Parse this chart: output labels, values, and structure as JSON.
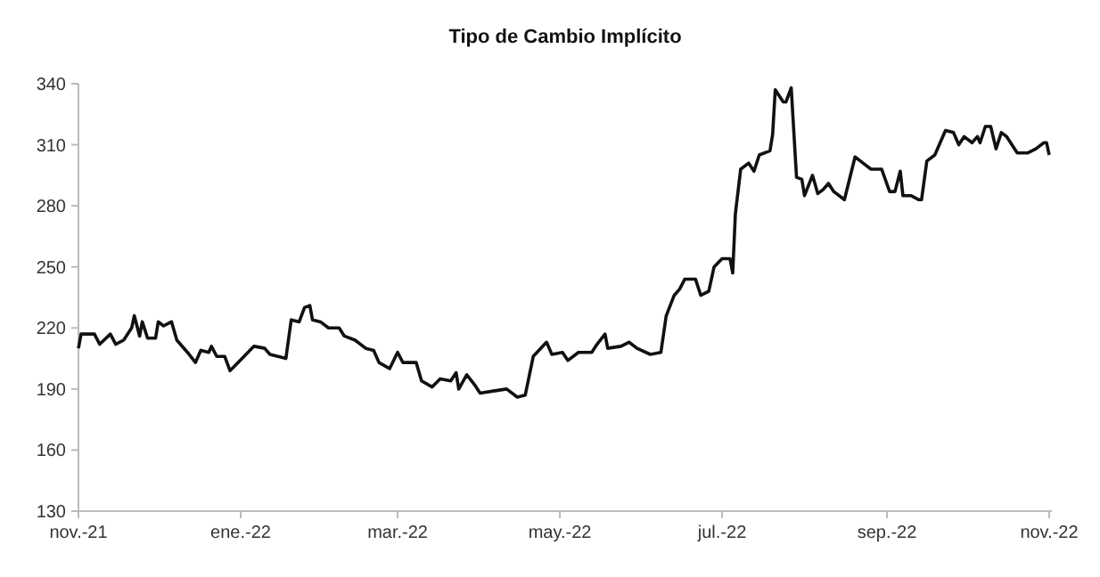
{
  "chart_data": {
    "type": "line",
    "title": "Tipo de Cambio Implícito",
    "x": [
      "2021-11-01",
      "2021-11-02",
      "2021-11-07",
      "2021-11-09",
      "2021-11-13",
      "2021-11-15",
      "2021-11-18",
      "2021-11-21",
      "2021-11-22",
      "2021-11-24",
      "2021-11-25",
      "2021-11-27",
      "2021-11-30",
      "2021-12-01",
      "2021-12-03",
      "2021-12-06",
      "2021-12-08",
      "2021-12-12",
      "2021-12-15",
      "2021-12-17",
      "2021-12-20",
      "2021-12-21",
      "2021-12-23",
      "2021-12-26",
      "2021-12-28",
      "2021-12-31",
      "2022-01-03",
      "2022-01-06",
      "2022-01-10",
      "2022-01-12",
      "2022-01-15",
      "2022-01-18",
      "2022-01-20",
      "2022-01-23",
      "2022-01-25",
      "2022-01-27",
      "2022-01-28",
      "2022-01-31",
      "2022-02-03",
      "2022-02-07",
      "2022-02-09",
      "2022-02-13",
      "2022-02-17",
      "2022-02-20",
      "2022-02-22",
      "2022-02-26",
      "2022-03-01",
      "2022-03-03",
      "2022-03-08",
      "2022-03-10",
      "2022-03-14",
      "2022-03-17",
      "2022-03-21",
      "2022-03-23",
      "2022-03-24",
      "2022-03-27",
      "2022-03-30",
      "2022-04-01",
      "2022-04-06",
      "2022-04-11",
      "2022-04-15",
      "2022-04-18",
      "2022-04-21",
      "2022-04-26",
      "2022-04-28",
      "2022-05-02",
      "2022-05-04",
      "2022-05-08",
      "2022-05-13",
      "2022-05-15",
      "2022-05-18",
      "2022-05-19",
      "2022-05-24",
      "2022-05-27",
      "2022-05-30",
      "2022-06-04",
      "2022-06-08",
      "2022-06-10",
      "2022-06-13",
      "2022-06-15",
      "2022-06-17",
      "2022-06-21",
      "2022-06-23",
      "2022-06-26",
      "2022-06-28",
      "2022-07-01",
      "2022-07-04",
      "2022-07-05",
      "2022-07-06",
      "2022-07-08",
      "2022-07-11",
      "2022-07-13",
      "2022-07-15",
      "2022-07-19",
      "2022-07-20",
      "2022-07-21",
      "2022-07-24",
      "2022-07-25",
      "2022-07-27",
      "2022-07-29",
      "2022-07-31",
      "2022-08-01",
      "2022-08-04",
      "2022-08-06",
      "2022-08-08",
      "2022-08-10",
      "2022-08-12",
      "2022-08-16",
      "2022-08-20",
      "2022-08-23",
      "2022-08-26",
      "2022-08-30",
      "2022-09-02",
      "2022-09-04",
      "2022-09-06",
      "2022-09-07",
      "2022-09-10",
      "2022-09-13",
      "2022-09-14",
      "2022-09-16",
      "2022-09-19",
      "2022-09-23",
      "2022-09-26",
      "2022-09-28",
      "2022-09-30",
      "2022-10-03",
      "2022-10-05",
      "2022-10-06",
      "2022-10-08",
      "2022-10-10",
      "2022-10-12",
      "2022-10-14",
      "2022-10-16",
      "2022-10-20",
      "2022-10-24",
      "2022-10-27",
      "2022-10-30",
      "2022-10-31",
      "2022-11-01"
    ],
    "series": [
      {
        "color": "#111111",
        "values": [
          210,
          217,
          217,
          212,
          217,
          212,
          214,
          220,
          226,
          216,
          223,
          215,
          215,
          223,
          221,
          223,
          214,
          208,
          203,
          209,
          208,
          211,
          206,
          206,
          199,
          203,
          207,
          211,
          210,
          207,
          206,
          205,
          224,
          223,
          230,
          231,
          224,
          223,
          220,
          220,
          216,
          214,
          210,
          209,
          203,
          200,
          208,
          203,
          203,
          194,
          191,
          195,
          194,
          198,
          190,
          197,
          192,
          188,
          189,
          190,
          186,
          187,
          206,
          213,
          207,
          208,
          204,
          208,
          208,
          212,
          217,
          210,
          211,
          213,
          210,
          207,
          208,
          226,
          236,
          239,
          244,
          244,
          236,
          238,
          250,
          254,
          254,
          247,
          276,
          298,
          301,
          297,
          305,
          307,
          315,
          337,
          331,
          331,
          338,
          294,
          293,
          285,
          295,
          286,
          288,
          291,
          287,
          283,
          304,
          301,
          298,
          298,
          287,
          287,
          297,
          285,
          285,
          283,
          283,
          302,
          305,
          317,
          316,
          310,
          314,
          311,
          314,
          311,
          319,
          319,
          308,
          316,
          314,
          306,
          306,
          308,
          311,
          311,
          305
        ]
      }
    ],
    "xlim": [
      "2021-11-01",
      "2022-11-02"
    ],
    "xticks": [
      {
        "value": "2021-11-01",
        "label": "nov.-21"
      },
      {
        "value": "2022-01-01",
        "label": "ene.-22"
      },
      {
        "value": "2022-03-01",
        "label": "mar.-22"
      },
      {
        "value": "2022-05-01",
        "label": "may.-22"
      },
      {
        "value": "2022-07-01",
        "label": "jul.-22"
      },
      {
        "value": "2022-09-01",
        "label": "sep.-22"
      },
      {
        "value": "2022-11-01",
        "label": "nov.-22"
      }
    ],
    "ylim": [
      130,
      340
    ],
    "yticks": [
      130,
      160,
      190,
      220,
      250,
      280,
      310,
      340
    ],
    "grid": false,
    "marker": "none",
    "line_style": "solid"
  }
}
